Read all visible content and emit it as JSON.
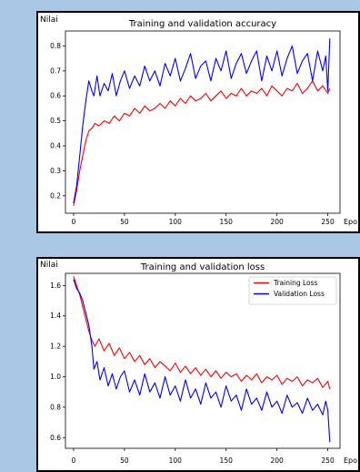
{
  "chart_data": [
    {
      "type": "line",
      "title": "Training and validation accuracy",
      "ylabel": "Nilai",
      "xlabel": "Epo",
      "xlim": [
        -8,
        262
      ],
      "ylim": [
        0.13,
        0.86
      ],
      "xticks": [
        0,
        50,
        100,
        150,
        200,
        250
      ],
      "yticks": [
        0.2,
        0.3,
        0.4,
        0.5,
        0.6,
        0.7,
        0.8
      ],
      "ytick_decimals": 1,
      "grid": false,
      "legend": "none",
      "series": [
        {
          "color": "#ff0000",
          "x": [
            0,
            3,
            6,
            9,
            12,
            15,
            18,
            21,
            25,
            30,
            35,
            40,
            45,
            50,
            55,
            60,
            65,
            70,
            75,
            80,
            85,
            90,
            95,
            100,
            105,
            110,
            115,
            120,
            125,
            130,
            135,
            140,
            145,
            150,
            155,
            160,
            165,
            170,
            175,
            180,
            185,
            190,
            195,
            200,
            205,
            210,
            215,
            220,
            225,
            230,
            235,
            240,
            245,
            250,
            252
          ],
          "y": [
            0.16,
            0.22,
            0.3,
            0.36,
            0.42,
            0.46,
            0.47,
            0.49,
            0.48,
            0.5,
            0.49,
            0.52,
            0.5,
            0.53,
            0.52,
            0.55,
            0.53,
            0.56,
            0.54,
            0.55,
            0.57,
            0.55,
            0.58,
            0.56,
            0.59,
            0.57,
            0.6,
            0.58,
            0.59,
            0.61,
            0.58,
            0.6,
            0.62,
            0.59,
            0.61,
            0.6,
            0.63,
            0.6,
            0.62,
            0.61,
            0.63,
            0.6,
            0.64,
            0.62,
            0.6,
            0.63,
            0.62,
            0.65,
            0.61,
            0.63,
            0.66,
            0.62,
            0.64,
            0.61,
            0.63
          ]
        },
        {
          "color": "#0000ff",
          "x": [
            0,
            3,
            6,
            9,
            12,
            15,
            18,
            20,
            23,
            26,
            30,
            34,
            38,
            42,
            46,
            50,
            55,
            60,
            65,
            70,
            75,
            80,
            85,
            90,
            95,
            100,
            105,
            110,
            115,
            120,
            125,
            130,
            135,
            140,
            145,
            150,
            155,
            160,
            165,
            170,
            175,
            180,
            185,
            190,
            195,
            200,
            205,
            210,
            215,
            220,
            225,
            230,
            235,
            240,
            245,
            248,
            250,
            252
          ],
          "y": [
            0.17,
            0.24,
            0.36,
            0.48,
            0.58,
            0.66,
            0.62,
            0.6,
            0.68,
            0.6,
            0.65,
            0.62,
            0.69,
            0.6,
            0.66,
            0.7,
            0.63,
            0.68,
            0.64,
            0.72,
            0.66,
            0.7,
            0.64,
            0.73,
            0.68,
            0.75,
            0.66,
            0.71,
            0.77,
            0.67,
            0.72,
            0.74,
            0.66,
            0.75,
            0.7,
            0.78,
            0.67,
            0.73,
            0.77,
            0.69,
            0.74,
            0.78,
            0.66,
            0.76,
            0.7,
            0.78,
            0.68,
            0.75,
            0.8,
            0.69,
            0.74,
            0.77,
            0.66,
            0.78,
            0.7,
            0.76,
            0.62,
            0.83
          ]
        }
      ]
    },
    {
      "type": "line",
      "title": "Training and validation loss",
      "ylabel": "Nilai",
      "xlabel": "Epo",
      "xlim": [
        -8,
        262
      ],
      "ylim": [
        0.53,
        1.68
      ],
      "xticks": [
        0,
        50,
        100,
        150,
        200,
        250
      ],
      "yticks": [
        0.6,
        0.8,
        1.0,
        1.2,
        1.4,
        1.6
      ],
      "ytick_decimals": 1,
      "grid": false,
      "legend": "top-right",
      "series": [
        {
          "name": "Training Loss",
          "color": "#ff0000",
          "x": [
            0,
            3,
            6,
            9,
            12,
            15,
            18,
            21,
            25,
            30,
            35,
            40,
            45,
            50,
            55,
            60,
            65,
            70,
            75,
            80,
            85,
            90,
            95,
            100,
            105,
            110,
            115,
            120,
            125,
            130,
            135,
            140,
            145,
            150,
            155,
            160,
            165,
            170,
            175,
            180,
            185,
            190,
            195,
            200,
            205,
            210,
            215,
            220,
            225,
            230,
            235,
            240,
            245,
            250,
            252
          ],
          "y": [
            1.66,
            1.6,
            1.54,
            1.46,
            1.38,
            1.3,
            1.24,
            1.2,
            1.25,
            1.17,
            1.22,
            1.14,
            1.19,
            1.12,
            1.16,
            1.1,
            1.14,
            1.08,
            1.12,
            1.06,
            1.1,
            1.07,
            1.04,
            1.09,
            1.03,
            1.07,
            1.02,
            1.06,
            1.01,
            1.05,
            1.0,
            1.04,
            0.99,
            1.03,
            1.0,
            1.02,
            0.97,
            1.01,
            0.98,
            1.02,
            0.96,
            1.0,
            0.98,
            1.01,
            0.95,
            0.99,
            0.97,
            1.0,
            0.94,
            0.98,
            0.96,
            0.99,
            0.93,
            0.97,
            0.92
          ]
        },
        {
          "name": "Validation Loss",
          "color": "#0000ff",
          "x": [
            0,
            3,
            6,
            9,
            12,
            15,
            18,
            20,
            23,
            26,
            30,
            34,
            38,
            42,
            46,
            50,
            55,
            60,
            65,
            70,
            75,
            80,
            85,
            90,
            95,
            100,
            105,
            110,
            115,
            120,
            125,
            130,
            135,
            140,
            145,
            150,
            155,
            160,
            165,
            170,
            175,
            180,
            185,
            190,
            195,
            200,
            205,
            210,
            215,
            220,
            225,
            230,
            235,
            240,
            245,
            248,
            250,
            252
          ],
          "y": [
            1.64,
            1.58,
            1.55,
            1.5,
            1.42,
            1.34,
            1.2,
            1.05,
            1.1,
            0.98,
            1.06,
            0.94,
            1.02,
            0.92,
            1.0,
            1.04,
            0.9,
            0.98,
            0.88,
            1.02,
            0.9,
            0.96,
            0.86,
            1.0,
            0.88,
            0.94,
            0.84,
            0.98,
            0.86,
            0.92,
            0.82,
            0.96,
            0.86,
            0.9,
            0.8,
            0.94,
            0.84,
            0.88,
            0.78,
            0.92,
            0.82,
            0.86,
            0.78,
            0.9,
            0.8,
            0.84,
            0.76,
            0.88,
            0.8,
            0.83,
            0.76,
            0.86,
            0.78,
            0.82,
            0.75,
            0.84,
            0.78,
            0.57
          ]
        }
      ]
    }
  ]
}
